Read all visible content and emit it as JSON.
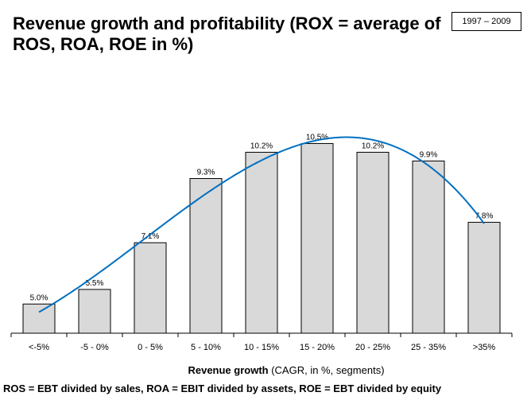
{
  "chart_data": {
    "type": "bar",
    "title": "Revenue growth and profitability (ROX = average of ROS, ROA, ROE in %)",
    "period_label": "1997 – 2009",
    "categories": [
      "<-5%",
      "-5 - 0%",
      "0 - 5%",
      "5 - 10%",
      "10 - 15%",
      "15 - 20%",
      "20 - 25%",
      "25 - 35%",
      ">35%"
    ],
    "values": [
      5.0,
      5.5,
      7.1,
      9.3,
      10.2,
      10.5,
      10.2,
      9.9,
      7.8
    ],
    "data_labels": [
      "5.0%",
      "5.5%",
      "7.1%",
      "9.3%",
      "10.2%",
      "10.5%",
      "10.2%",
      "9.9%",
      "7.8%"
    ],
    "xlabel_bold": "Revenue growth",
    "xlabel_rest": " (CAGR, in %, segments)",
    "ylabel": "",
    "ylim": [
      4,
      11
    ],
    "trendline": "polynomial",
    "grid": false,
    "colors": {
      "bar_fill": "#d9d9d9",
      "bar_stroke": "#000000",
      "trendline": "#0070c0"
    }
  },
  "footnote": "ROS = EBT divided by sales, ROA = EBIT divided by assets, ROE = EBT divided by equity"
}
